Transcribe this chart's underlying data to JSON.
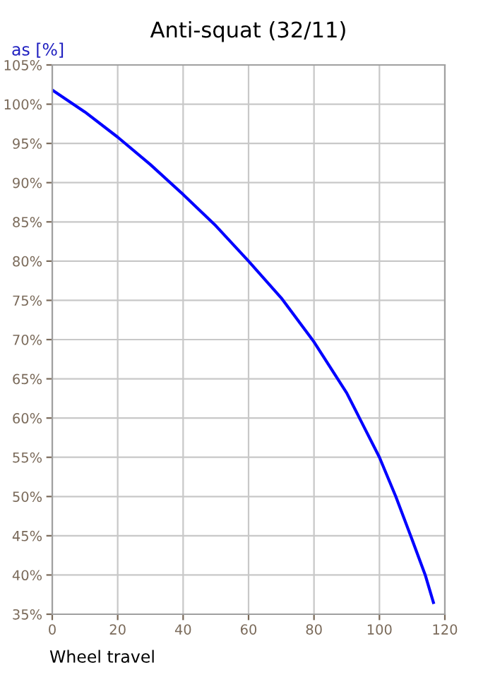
{
  "chart_data": {
    "type": "line",
    "title": "Anti-squat (32/11)",
    "xlabel": "Wheel travel",
    "ylabel": "as [%]",
    "x": [
      0,
      10,
      20,
      30,
      40,
      50,
      60,
      70,
      80,
      90,
      100,
      105,
      110,
      114,
      116.5
    ],
    "series": [
      {
        "color": "#0000ff",
        "values": [
          101.8,
          99,
          95.8,
          92.3,
          88.5,
          84.5,
          80,
          75.3,
          69.7,
          63.2,
          55,
          50,
          44.5,
          40,
          36.5
        ]
      }
    ],
    "xlim": [
      0,
      120
    ],
    "xticks": [
      0,
      20,
      40,
      60,
      80,
      100,
      120
    ],
    "ylim": [
      35,
      105
    ],
    "yticks": [
      {
        "value": 35,
        "label": "35%"
      },
      {
        "value": 40,
        "label": "40%"
      },
      {
        "value": 45,
        "label": "45%"
      },
      {
        "value": 50,
        "label": "50%"
      },
      {
        "value": 55,
        "label": "55%"
      },
      {
        "value": 60,
        "label": "60%"
      },
      {
        "value": 65,
        "label": "65%"
      },
      {
        "value": 70,
        "label": "70%"
      },
      {
        "value": 75,
        "label": "75%"
      },
      {
        "value": 80,
        "label": "80%"
      },
      {
        "value": 85,
        "label": "85%"
      },
      {
        "value": 90,
        "label": "90%"
      },
      {
        "value": 95,
        "label": "95%"
      },
      {
        "value": 100,
        "label": "100%"
      },
      {
        "value": 105,
        "label": "105%"
      }
    ],
    "grid": true,
    "marker": "none",
    "line_style": "solid"
  }
}
